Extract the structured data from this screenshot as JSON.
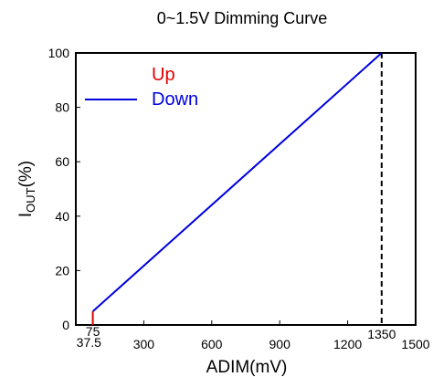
{
  "chart_data": {
    "type": "line",
    "title": "0~1.5V Dimming Curve",
    "xlabel": "ADIM(mV)",
    "ylabel": {
      "main": "I",
      "sub": "OUT",
      "unit": "(%)"
    },
    "xlim": [
      0,
      1500
    ],
    "ylim": [
      0,
      100
    ],
    "x_ticks": [
      "300",
      "600",
      "900",
      "1200",
      "1500"
    ],
    "x_tick_values": [
      300,
      600,
      900,
      1200,
      1500
    ],
    "x_annotations": [
      {
        "label": "37.5",
        "value": 37.5
      },
      {
        "label": "75",
        "value": 75
      },
      {
        "label": "1350",
        "value": 1350
      }
    ],
    "y_ticks": [
      "0",
      "20",
      "40",
      "60",
      "80",
      "100"
    ],
    "y_tick_values": [
      0,
      20,
      40,
      60,
      80,
      100
    ],
    "series": [
      {
        "name": "Up",
        "color": "#e00000",
        "x": [
          75,
          75
        ],
        "y": [
          0,
          5
        ]
      },
      {
        "name": "Down",
        "color": "#0000e0",
        "x": [
          75,
          1350
        ],
        "y": [
          5,
          100
        ]
      }
    ],
    "reference_line": {
      "x": 1350,
      "style": "dashed",
      "color": "#000000"
    },
    "legend_position": "top-left",
    "grid": false
  }
}
